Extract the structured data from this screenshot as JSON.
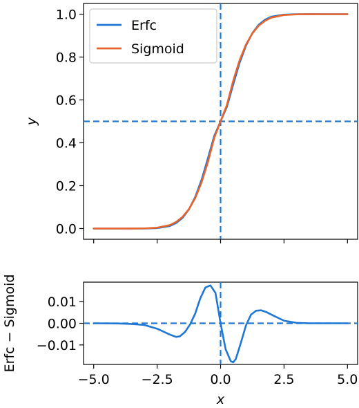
{
  "chart_data": [
    {
      "type": "line",
      "title": "",
      "xlabel": "",
      "ylabel": "y",
      "xlim": [
        -5.4,
        5.4
      ],
      "ylim": [
        -0.05,
        1.05
      ],
      "x_ticks": [
        -5.0,
        -2.5,
        0.0,
        2.5,
        5.0
      ],
      "y_ticks": [
        0.0,
        0.2,
        0.4,
        0.6,
        0.8,
        1.0
      ],
      "y_tick_labels": [
        "0.0",
        "0.2",
        "0.4",
        "0.6",
        "0.8",
        "1.0"
      ],
      "x_tick_labels_visible": false,
      "legend": {
        "placement": "upper-left"
      },
      "series": [
        {
          "name": "Erfc",
          "color": "#1f77d4",
          "x": [
            -5.0,
            -4.5,
            -4.0,
            -3.5,
            -3.0,
            -2.5,
            -2.0,
            -1.75,
            -1.5,
            -1.25,
            -1.0,
            -0.75,
            -0.5,
            -0.25,
            0.0,
            0.25,
            0.5,
            0.75,
            1.0,
            1.25,
            1.5,
            1.75,
            2.0,
            2.5,
            3.0,
            3.5,
            4.0,
            4.5,
            5.0
          ],
          "y": [
            0.0,
            0.0,
            0.0,
            0.0,
            0.0001,
            0.002,
            0.0118,
            0.026,
            0.0495,
            0.0889,
            0.1468,
            0.2266,
            0.327,
            0.4318,
            0.5,
            0.5682,
            0.673,
            0.7734,
            0.8532,
            0.9111,
            0.9505,
            0.974,
            0.9882,
            0.998,
            0.9999,
            1.0,
            1.0,
            1.0,
            1.0
          ]
        },
        {
          "name": "Sigmoid",
          "color": "#e8642c",
          "x": [
            -5.0,
            -4.5,
            -4.0,
            -3.5,
            -3.0,
            -2.5,
            -2.0,
            -1.75,
            -1.5,
            -1.25,
            -1.0,
            -0.75,
            -0.5,
            -0.25,
            0.0,
            0.25,
            0.5,
            0.75,
            1.0,
            1.25,
            1.5,
            1.75,
            2.0,
            2.5,
            3.0,
            3.5,
            4.0,
            4.5,
            5.0
          ],
          "y": [
            0.0,
            0.0,
            0.0,
            0.0002,
            0.0008,
            0.0038,
            0.016,
            0.031,
            0.054,
            0.09,
            0.142,
            0.215,
            0.31,
            0.423,
            0.5,
            0.577,
            0.69,
            0.785,
            0.858,
            0.91,
            0.946,
            0.969,
            0.984,
            0.9962,
            0.9992,
            0.9998,
            1.0,
            1.0,
            1.0
          ]
        }
      ],
      "reference_lines": {
        "vertical_x": 0.0,
        "horizontal_y": 0.5,
        "color": "#1f77d4",
        "style": "dashed"
      }
    },
    {
      "type": "line",
      "title": "",
      "xlabel": "x",
      "ylabel": "Erfc − Sigmoid",
      "xlim": [
        -5.4,
        5.4
      ],
      "ylim": [
        -0.019,
        0.019
      ],
      "x_ticks": [
        -5.0,
        -2.5,
        0.0,
        2.5,
        5.0
      ],
      "x_tick_labels": [
        "−5.0",
        "−2.5",
        "0.0",
        "2.5",
        "5.0"
      ],
      "y_ticks": [
        -0.01,
        0.0,
        0.01
      ],
      "y_tick_labels": [
        "−0.01",
        "0.00",
        "0.01"
      ],
      "series": [
        {
          "name": "",
          "color": "#1f77d4",
          "x": [
            -5.0,
            -4.0,
            -3.5,
            -3.0,
            -2.5,
            -2.0,
            -1.75,
            -1.6,
            -1.4,
            -1.2,
            -1.0,
            -0.8,
            -0.6,
            -0.4,
            -0.2,
            0.0,
            0.2,
            0.4,
            0.5,
            0.6,
            0.8,
            1.0,
            1.2,
            1.4,
            1.6,
            1.8,
            2.0,
            2.5,
            3.0,
            3.5,
            4.0,
            5.0
          ],
          "y": [
            0.0,
            -0.0001,
            -0.0003,
            -0.0008,
            -0.0025,
            -0.0052,
            -0.0063,
            -0.006,
            -0.004,
            -0.0005,
            0.0045,
            0.0115,
            0.0165,
            0.0175,
            0.014,
            0.0,
            -0.012,
            -0.0175,
            -0.018,
            -0.0165,
            -0.009,
            -0.001,
            0.004,
            0.0058,
            0.006,
            0.0052,
            0.004,
            0.0012,
            0.0002,
            0.0,
            0.0,
            0.0
          ]
        }
      ],
      "reference_lines": {
        "vertical_x": 0.0,
        "horizontal_y": 0.0,
        "color": "#1f77d4",
        "style": "dashed"
      }
    }
  ]
}
